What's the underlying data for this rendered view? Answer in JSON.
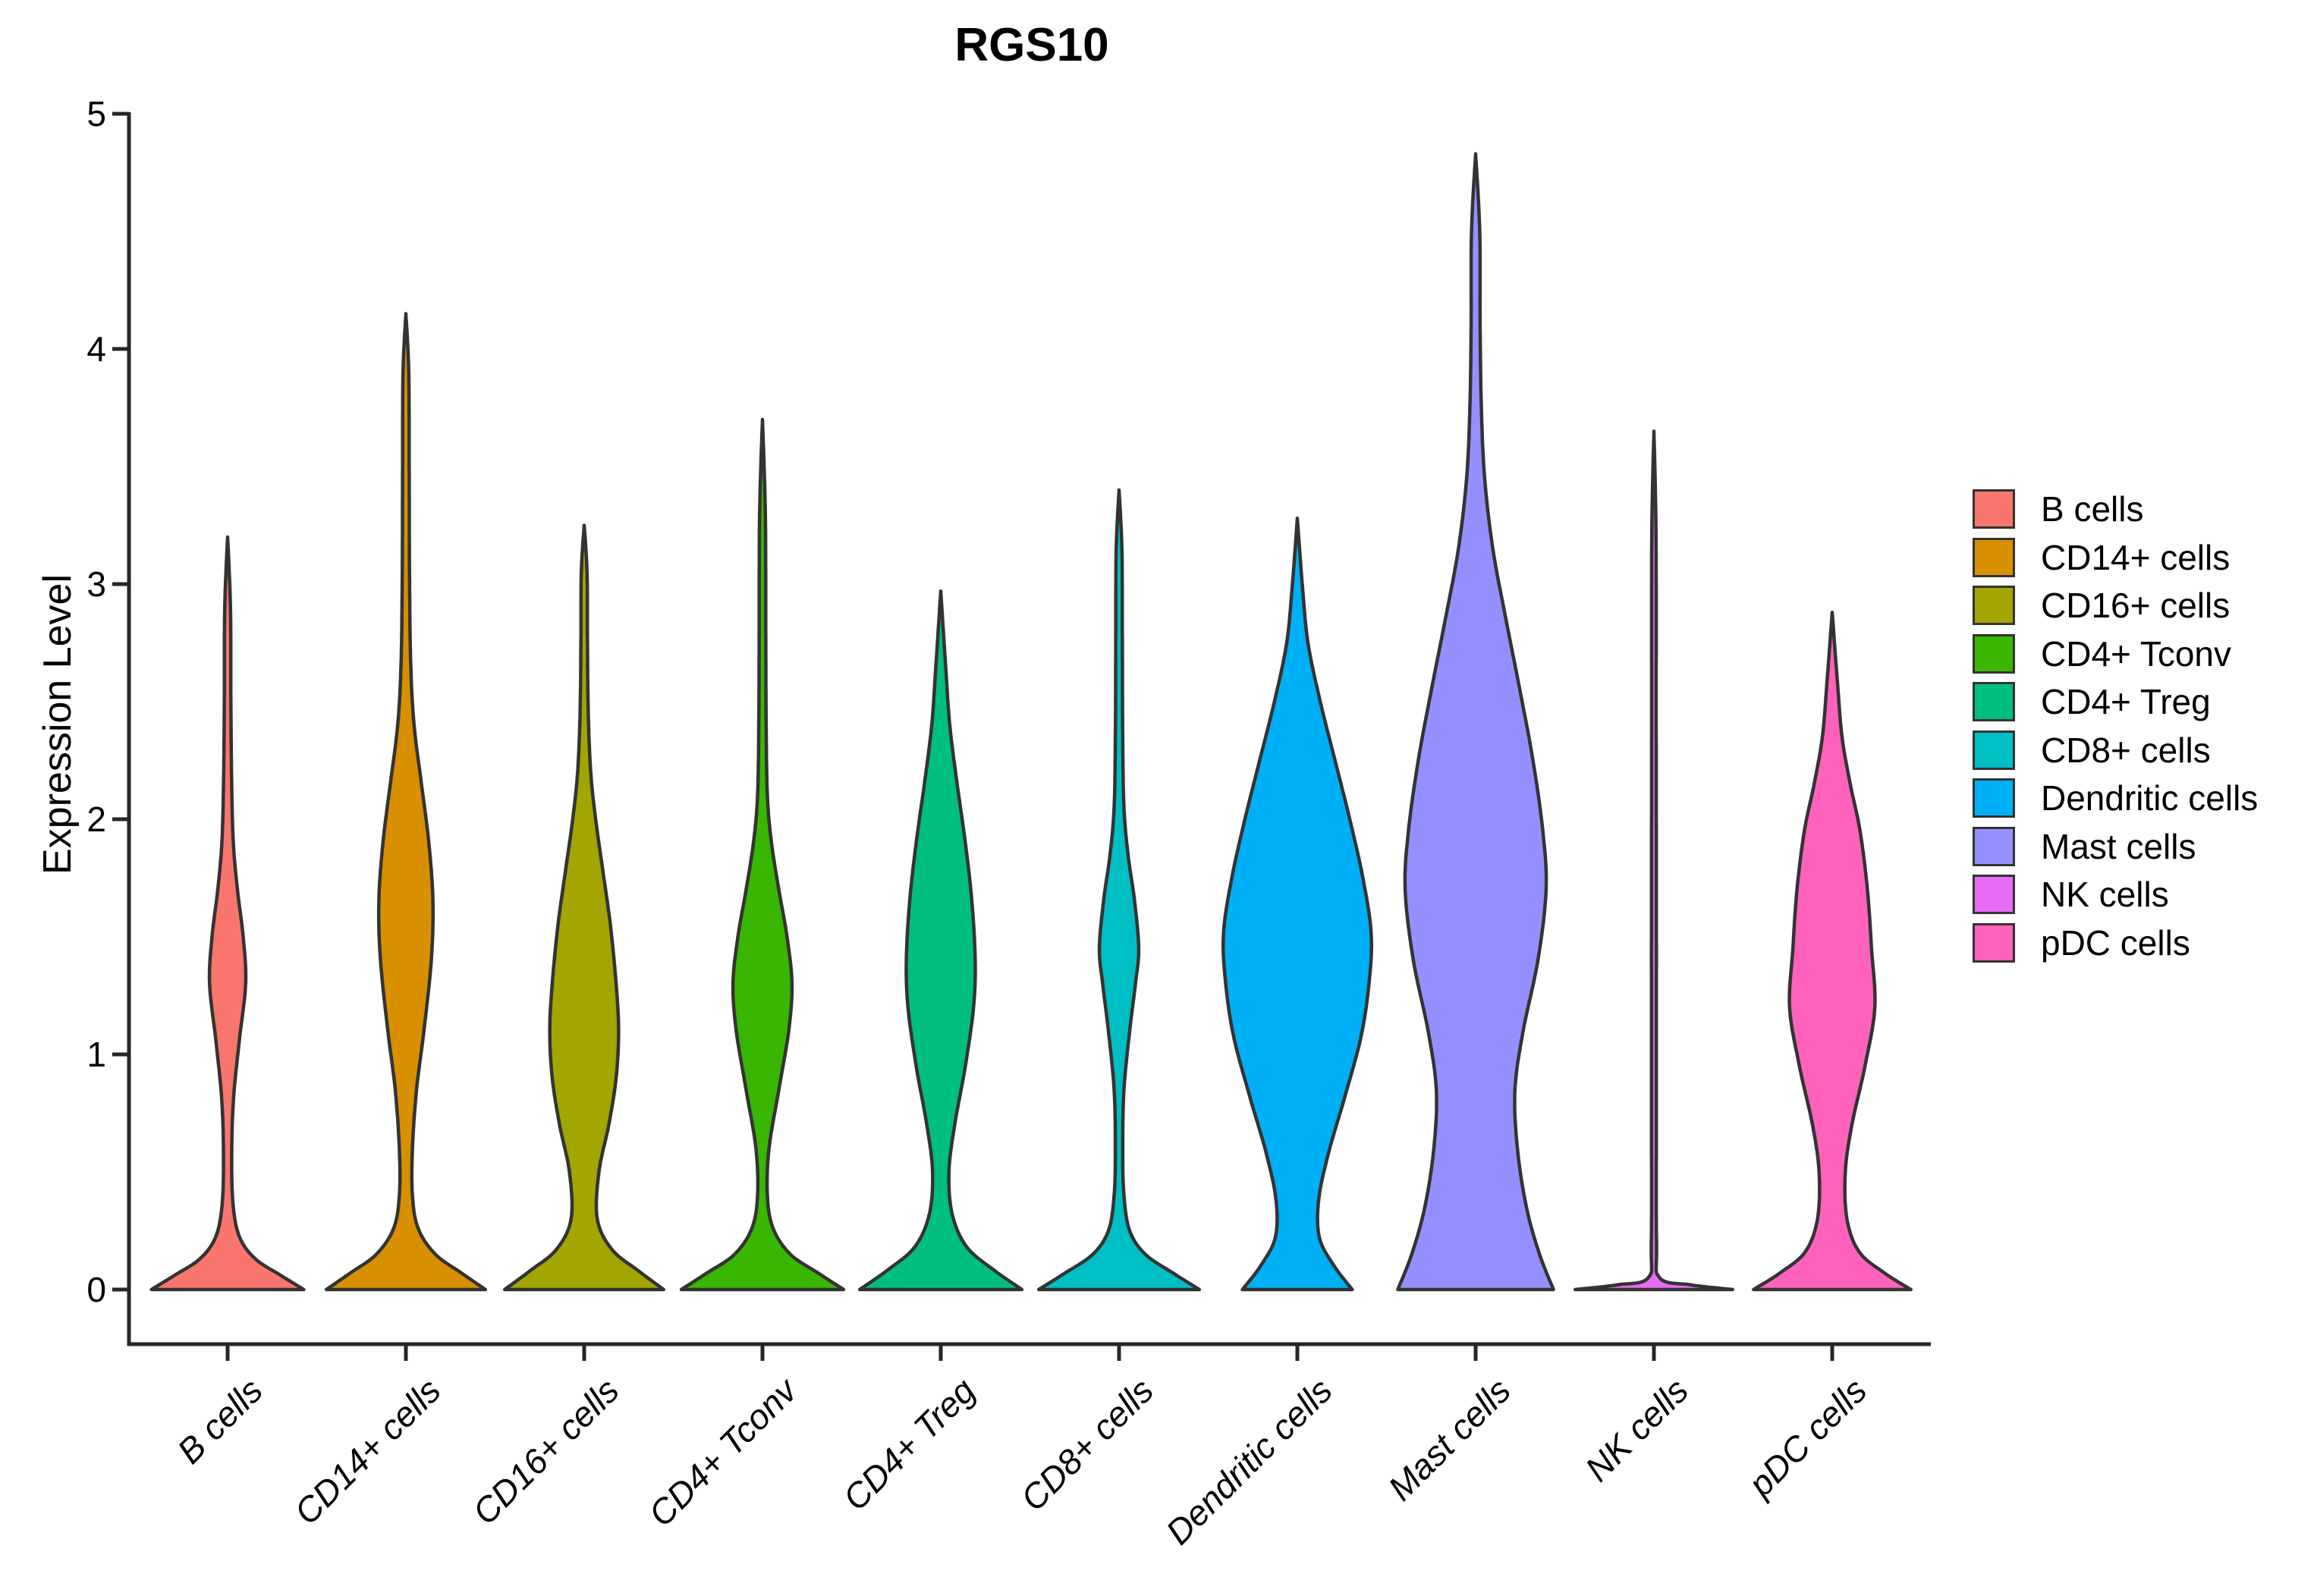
{
  "title": "RGS10",
  "y_axis": {
    "label": "Expression Level",
    "ticks": [
      "0",
      "1",
      "2",
      "3",
      "4",
      "5"
    ]
  },
  "x_axis": {
    "categories": [
      "B cells",
      "CD14+ cells",
      "CD16+ cells",
      "CD4+ Tconv",
      "CD4+ Treg",
      "CD8+ cells",
      "Dendritic cells",
      "Mast cells",
      "NK cells",
      "pDC cells"
    ]
  },
  "legend": {
    "position": "right",
    "entries": [
      {
        "label": "B cells",
        "color": "#F8766D"
      },
      {
        "label": "CD14+ cells",
        "color": "#D89000"
      },
      {
        "label": "CD16+ cells",
        "color": "#A3A500"
      },
      {
        "label": "CD4+ Tconv",
        "color": "#39B600"
      },
      {
        "label": "CD4+ Treg",
        "color": "#00BF7D"
      },
      {
        "label": "CD8+ cells",
        "color": "#00BFC4"
      },
      {
        "label": "Dendritic cells",
        "color": "#00B0F6"
      },
      {
        "label": "Mast cells",
        "color": "#9590FF"
      },
      {
        "label": "NK cells",
        "color": "#E76BF3"
      },
      {
        "label": "pDC cells",
        "color": "#FF62BC"
      }
    ]
  },
  "chart_data": {
    "type": "violin",
    "title": "RGS10",
    "xlabel": "",
    "ylabel": "Expression Level",
    "ylim": [
      0,
      5
    ],
    "yticks": [
      0,
      1,
      2,
      3,
      4,
      5
    ],
    "grid": false,
    "legend_position": "right",
    "outline_color": "#333333",
    "categories": [
      "B cells",
      "CD14+ cells",
      "CD16+ cells",
      "CD4+ Tconv",
      "CD4+ Treg",
      "CD8+ cells",
      "Dendritic cells",
      "Mast cells",
      "NK cells",
      "pDC cells"
    ],
    "series": [
      {
        "name": "B cells",
        "color": "#F8766D",
        "max_expression": 3.2,
        "profile": [
          [
            0,
            0.93
          ],
          [
            0.06,
            0.65
          ],
          [
            0.13,
            0.34
          ],
          [
            0.22,
            0.15
          ],
          [
            0.35,
            0.07
          ],
          [
            0.55,
            0.05
          ],
          [
            0.8,
            0.07
          ],
          [
            1.05,
            0.14
          ],
          [
            1.3,
            0.22
          ],
          [
            1.5,
            0.19
          ],
          [
            1.7,
            0.12
          ],
          [
            1.9,
            0.07
          ],
          [
            2.15,
            0.05
          ],
          [
            2.5,
            0.04
          ],
          [
            2.9,
            0.035
          ],
          [
            3.2,
            0
          ]
        ]
      },
      {
        "name": "CD14+ cells",
        "color": "#D89000",
        "max_expression": 4.15,
        "profile": [
          [
            0,
            0.97
          ],
          [
            0.07,
            0.68
          ],
          [
            0.15,
            0.36
          ],
          [
            0.26,
            0.15
          ],
          [
            0.4,
            0.08
          ],
          [
            0.6,
            0.08
          ],
          [
            0.85,
            0.13
          ],
          [
            1.1,
            0.22
          ],
          [
            1.4,
            0.31
          ],
          [
            1.65,
            0.33
          ],
          [
            1.9,
            0.28
          ],
          [
            2.15,
            0.19
          ],
          [
            2.4,
            0.1
          ],
          [
            2.65,
            0.06
          ],
          [
            3.0,
            0.045
          ],
          [
            3.5,
            0.04
          ],
          [
            3.9,
            0.035
          ],
          [
            4.15,
            0
          ]
        ]
      },
      {
        "name": "CD16+ cells",
        "color": "#A3A500",
        "max_expression": 3.25,
        "profile": [
          [
            0,
            0.97
          ],
          [
            0.08,
            0.66
          ],
          [
            0.17,
            0.34
          ],
          [
            0.3,
            0.16
          ],
          [
            0.5,
            0.18
          ],
          [
            0.7,
            0.3
          ],
          [
            0.9,
            0.39
          ],
          [
            1.1,
            0.42
          ],
          [
            1.3,
            0.39
          ],
          [
            1.55,
            0.32
          ],
          [
            1.8,
            0.22
          ],
          [
            2.0,
            0.14
          ],
          [
            2.2,
            0.08
          ],
          [
            2.45,
            0.05
          ],
          [
            2.75,
            0.04
          ],
          [
            3.05,
            0.035
          ],
          [
            3.25,
            0
          ]
        ]
      },
      {
        "name": "CD4+ Tconv",
        "color": "#39B600",
        "max_expression": 3.7,
        "profile": [
          [
            0,
            0.99
          ],
          [
            0.07,
            0.68
          ],
          [
            0.15,
            0.34
          ],
          [
            0.26,
            0.13
          ],
          [
            0.4,
            0.06
          ],
          [
            0.6,
            0.08
          ],
          [
            0.85,
            0.2
          ],
          [
            1.1,
            0.32
          ],
          [
            1.3,
            0.36
          ],
          [
            1.5,
            0.3
          ],
          [
            1.7,
            0.2
          ],
          [
            1.9,
            0.11
          ],
          [
            2.1,
            0.06
          ],
          [
            2.4,
            0.045
          ],
          [
            2.8,
            0.04
          ],
          [
            3.3,
            0.035
          ],
          [
            3.7,
            0
          ]
        ]
      },
      {
        "name": "CD4+ Treg",
        "color": "#00BF7D",
        "max_expression": 2.97,
        "profile": [
          [
            0,
            0.99
          ],
          [
            0.08,
            0.66
          ],
          [
            0.18,
            0.32
          ],
          [
            0.32,
            0.14
          ],
          [
            0.5,
            0.1
          ],
          [
            0.7,
            0.17
          ],
          [
            0.95,
            0.3
          ],
          [
            1.2,
            0.4
          ],
          [
            1.4,
            0.42
          ],
          [
            1.65,
            0.38
          ],
          [
            1.9,
            0.3
          ],
          [
            2.15,
            0.2
          ],
          [
            2.4,
            0.11
          ],
          [
            2.65,
            0.06
          ],
          [
            2.97,
            0
          ]
        ]
      },
      {
        "name": "CD8+ cells",
        "color": "#00BFC4",
        "max_expression": 3.4,
        "profile": [
          [
            0,
            0.98
          ],
          [
            0.07,
            0.66
          ],
          [
            0.15,
            0.32
          ],
          [
            0.25,
            0.13
          ],
          [
            0.4,
            0.06
          ],
          [
            0.6,
            0.045
          ],
          [
            0.85,
            0.06
          ],
          [
            1.1,
            0.13
          ],
          [
            1.3,
            0.2
          ],
          [
            1.45,
            0.24
          ],
          [
            1.65,
            0.19
          ],
          [
            1.85,
            0.11
          ],
          [
            2.05,
            0.06
          ],
          [
            2.35,
            0.045
          ],
          [
            2.8,
            0.04
          ],
          [
            3.15,
            0.035
          ],
          [
            3.4,
            0
          ]
        ]
      },
      {
        "name": "Dendritic cells",
        "color": "#00B0F6",
        "max_expression": 3.28,
        "profile": [
          [
            0,
            0.67
          ],
          [
            0.1,
            0.45
          ],
          [
            0.22,
            0.27
          ],
          [
            0.38,
            0.26
          ],
          [
            0.58,
            0.38
          ],
          [
            0.82,
            0.58
          ],
          [
            1.08,
            0.78
          ],
          [
            1.32,
            0.88
          ],
          [
            1.52,
            0.9
          ],
          [
            1.75,
            0.8
          ],
          [
            2.0,
            0.64
          ],
          [
            2.25,
            0.46
          ],
          [
            2.5,
            0.28
          ],
          [
            2.75,
            0.13
          ],
          [
            3.0,
            0.06
          ],
          [
            3.28,
            0
          ]
        ]
      },
      {
        "name": "Mast cells",
        "color": "#9590FF",
        "max_expression": 4.83,
        "profile": [
          [
            0,
            0.95
          ],
          [
            0.15,
            0.78
          ],
          [
            0.35,
            0.62
          ],
          [
            0.6,
            0.51
          ],
          [
            0.85,
            0.48
          ],
          [
            1.1,
            0.58
          ],
          [
            1.4,
            0.76
          ],
          [
            1.7,
            0.86
          ],
          [
            1.95,
            0.82
          ],
          [
            2.25,
            0.7
          ],
          [
            2.55,
            0.54
          ],
          [
            2.85,
            0.37
          ],
          [
            3.15,
            0.21
          ],
          [
            3.45,
            0.11
          ],
          [
            3.75,
            0.07
          ],
          [
            4.1,
            0.055
          ],
          [
            4.5,
            0.05
          ],
          [
            4.83,
            0
          ]
        ]
      },
      {
        "name": "NK cells",
        "color": "#E76BF3",
        "max_expression": 3.65,
        "profile": [
          [
            0,
            0.96
          ],
          [
            0.02,
            0.45
          ],
          [
            0.05,
            0.07
          ],
          [
            0.2,
            0.032
          ],
          [
            0.8,
            0.03
          ],
          [
            1.6,
            0.03
          ],
          [
            2.4,
            0.028
          ],
          [
            3.2,
            0.026
          ],
          [
            3.65,
            0
          ]
        ]
      },
      {
        "name": "pDC cells",
        "color": "#FF62BC",
        "max_expression": 2.88,
        "profile": [
          [
            0,
            0.96
          ],
          [
            0.07,
            0.64
          ],
          [
            0.16,
            0.33
          ],
          [
            0.3,
            0.18
          ],
          [
            0.5,
            0.16
          ],
          [
            0.7,
            0.24
          ],
          [
            0.95,
            0.4
          ],
          [
            1.2,
            0.52
          ],
          [
            1.45,
            0.48
          ],
          [
            1.7,
            0.43
          ],
          [
            1.95,
            0.34
          ],
          [
            2.15,
            0.22
          ],
          [
            2.35,
            0.12
          ],
          [
            2.6,
            0.06
          ],
          [
            2.88,
            0
          ]
        ]
      }
    ]
  }
}
